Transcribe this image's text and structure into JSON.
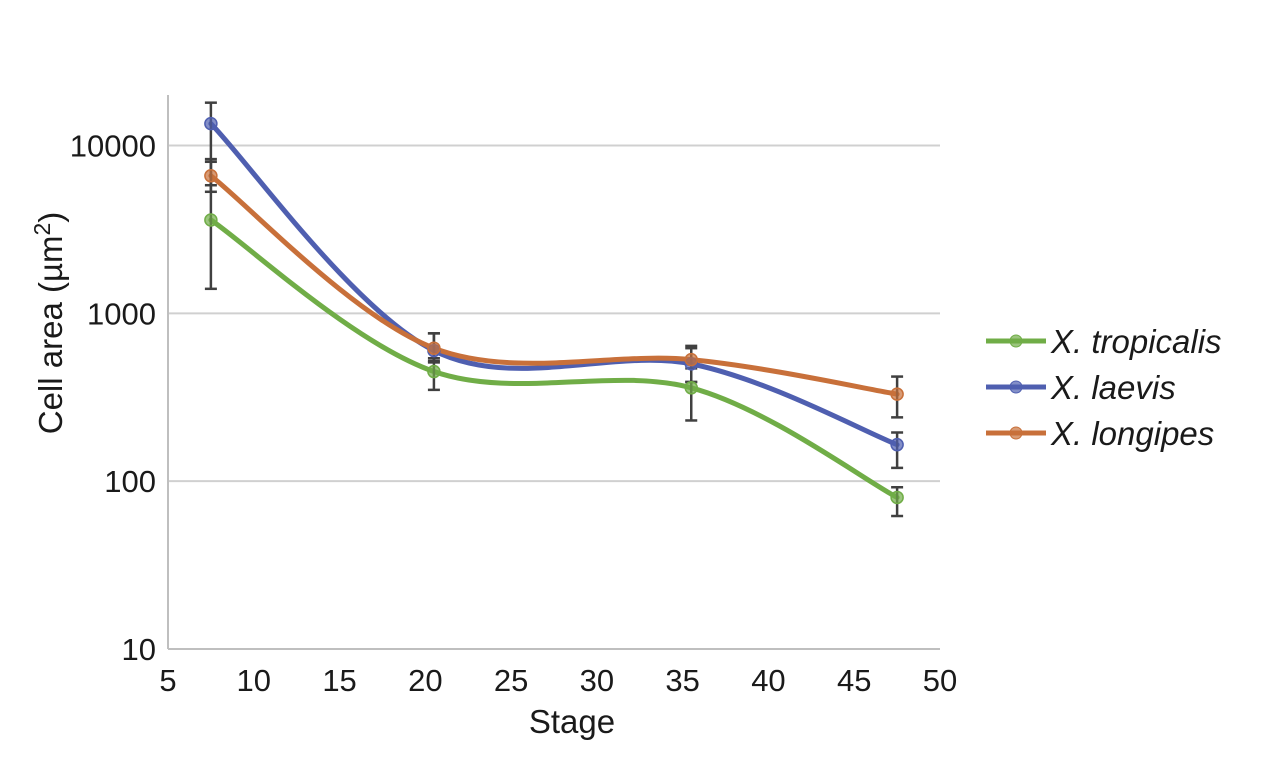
{
  "chart_data": {
    "type": "line",
    "title": "",
    "xlabel": "Stage",
    "ylabel": "Cell area (µm",
    "ylabel_superscript": "2",
    "ylabel_close": ")",
    "xlim": [
      5,
      50
    ],
    "x_ticks": [
      "5",
      "10",
      "15",
      "20",
      "25",
      "30",
      "35",
      "40",
      "45",
      "50"
    ],
    "y_scale": "log",
    "ylim": [
      10,
      20000
    ],
    "y_ticks": [
      "10",
      "100",
      "1000",
      "10000"
    ],
    "grid": "horizontal",
    "legend_position": "right",
    "x": [
      7.5,
      20.5,
      35.5,
      47.5
    ],
    "series": [
      {
        "name": "X. tropicalis",
        "color": "#70ad47",
        "values": [
          3600,
          450,
          360,
          80
        ],
        "error_low": [
          1400,
          350,
          230,
          62
        ],
        "error_high": [
          8000,
          540,
          390,
          92
        ]
      },
      {
        "name": "X. laevis",
        "color": "#4f5fb0",
        "values": [
          13500,
          600,
          500,
          165
        ],
        "error_low": [
          5800,
          520,
          390,
          120
        ],
        "error_high": [
          18000,
          760,
          640,
          195
        ]
      },
      {
        "name": "X. longipes",
        "color": "#c8703a",
        "values": [
          6600,
          620,
          530,
          330
        ],
        "error_low": [
          5300,
          510,
          470,
          240
        ],
        "error_high": [
          8300,
          760,
          620,
          420
        ]
      }
    ]
  }
}
